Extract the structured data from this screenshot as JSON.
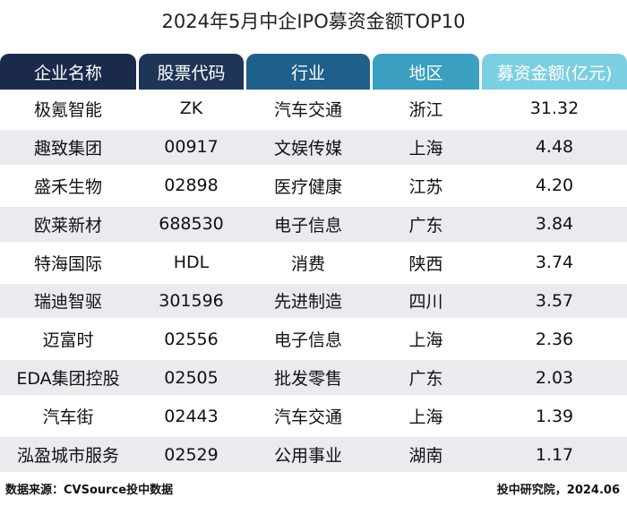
{
  "header": {
    "title": "2024年5月中企IPO募资金额TOP10"
  },
  "table": {
    "columns": [
      "企业名称",
      "股票代码",
      "行业",
      "地区",
      "募资金额(亿元)"
    ],
    "rows": [
      [
        "极氪智能",
        "ZK",
        "汽车交通",
        "浙江",
        "31.32"
      ],
      [
        "趣致集团",
        "00917",
        "文娱传媒",
        "上海",
        "4.48"
      ],
      [
        "盛禾生物",
        "02898",
        "医疗健康",
        "江苏",
        "4.20"
      ],
      [
        "欧莱新材",
        "688530",
        "电子信息",
        "广东",
        "3.84"
      ],
      [
        "特海国际",
        "HDL",
        "消费",
        "陕西",
        "3.74"
      ],
      [
        "瑞迪智驱",
        "301596",
        "先进制造",
        "四川",
        "3.57"
      ],
      [
        "迈富时",
        "02556",
        "电子信息",
        "上海",
        "2.36"
      ],
      [
        "EDA集团控股",
        "02505",
        "批发零售",
        "广东",
        "2.03"
      ],
      [
        "汽车街",
        "02443",
        "汽车交通",
        "上海",
        "1.39"
      ],
      [
        "泓盈城市服务",
        "02529",
        "公用事业",
        "湖南",
        "1.17"
      ]
    ]
  },
  "footer": {
    "source": "数据来源：CVSource投中数据",
    "credit": "投中研究院，2024.06"
  }
}
